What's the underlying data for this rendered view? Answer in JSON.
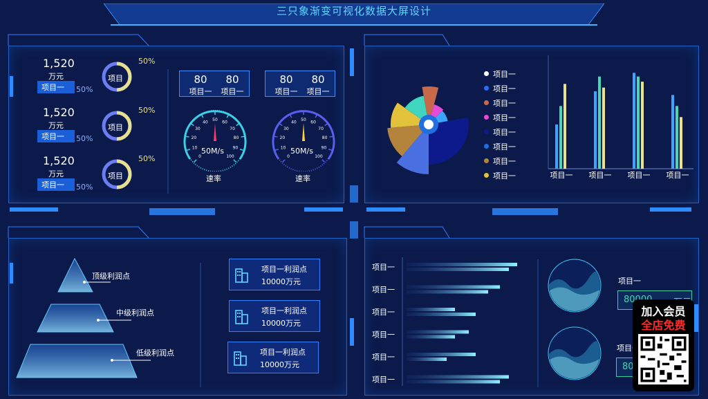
{
  "header": {
    "title": "三只象渐变可视化数据大屏设计"
  },
  "kpis": [
    {
      "value": "1,520",
      "unit": "万元",
      "tag": "项目一",
      "ring_label": "项目",
      "pct_top": "50%",
      "pct_bottom": "50%"
    },
    {
      "value": "1,520",
      "unit": "万元",
      "tag": "项目一",
      "ring_label": "项目",
      "pct_top": "50%",
      "pct_bottom": "50%"
    },
    {
      "value": "1,520",
      "unit": "万元",
      "tag": "项目一",
      "ring_label": "项目",
      "pct_top": "50%",
      "pct_bottom": "50%"
    }
  ],
  "gauges": [
    {
      "stats": [
        {
          "value": "80",
          "label": "项目一"
        },
        {
          "value": "80",
          "label": "项目一"
        }
      ],
      "readout": "50M/s",
      "label": "速率",
      "ticks": [
        "0",
        "10",
        "20",
        "30",
        "40",
        "50",
        "60",
        "70",
        "80",
        "90",
        "100"
      ]
    },
    {
      "stats": [
        {
          "value": "80",
          "label": "项目一"
        },
        {
          "value": "80",
          "label": "项目一"
        }
      ],
      "readout": "50M/s",
      "label": "速率",
      "ticks": [
        "0",
        "10",
        "20",
        "30",
        "40",
        "50",
        "60",
        "70",
        "80",
        "90",
        "100"
      ]
    }
  ],
  "rose": {
    "legend": [
      {
        "label": "项目一",
        "color": "#ffffff"
      },
      {
        "label": "项目一",
        "color": "#2a6df0"
      },
      {
        "label": "项目一",
        "color": "#c86a4a"
      },
      {
        "label": "项目一",
        "color": "#e54bd6"
      },
      {
        "label": "项目一",
        "color": "#0d1a8c"
      },
      {
        "label": "项目一",
        "color": "#1f6fe0"
      },
      {
        "label": "项目一",
        "color": "#b5843c"
      },
      {
        "label": "项目一",
        "color": "#e2c23a"
      }
    ]
  },
  "chart_data": [
    {
      "type": "bar",
      "categories": [
        "项目一",
        "项目一",
        "项目一",
        "项目一"
      ],
      "series": [
        {
          "values": [
            60,
            105,
            130,
            100
          ],
          "color": "#3aa6ff"
        },
        {
          "values": [
            85,
            125,
            125,
            85
          ],
          "color": "#49d6b0"
        },
        {
          "values": [
            115,
            110,
            118,
            70
          ],
          "color": "#e8e38a"
        }
      ],
      "ylim": [
        0,
        150
      ]
    },
    {
      "type": "bar",
      "orientation": "horizontal",
      "categories": [
        "项目一",
        "项目一",
        "项目一",
        "项目一",
        "项目一",
        "项目一"
      ],
      "series": [
        {
          "values": [
            160,
            135,
            70,
            90,
            100,
            148
          ]
        },
        {
          "values": [
            148,
            118,
            100,
            70,
            58,
            135
          ]
        }
      ],
      "xlim": [
        0,
        170
      ]
    }
  ],
  "pyramid": {
    "levels": [
      "顶级利润点",
      "中级利润点",
      "低级利润点"
    ]
  },
  "profit_cards": [
    {
      "title": "项目一利润点",
      "value": "10000万元"
    },
    {
      "title": "项目一利润点",
      "value": "10000万元"
    },
    {
      "title": "项目一利润点",
      "value": "10000万元"
    }
  ],
  "wave_items": [
    {
      "label": "项目一",
      "value": "80000",
      "unit": "万元"
    },
    {
      "label": "项目一",
      "value": "80",
      "unit": ""
    }
  ],
  "promo": {
    "line1": "加入会员",
    "line2": "全店免费"
  }
}
